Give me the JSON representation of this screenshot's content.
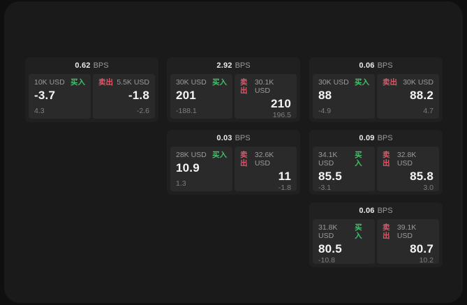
{
  "labels": {
    "bps": "BPS",
    "buy": "买入",
    "sell": "卖出"
  },
  "colors": {
    "page_background": "#0f0f0f",
    "panel_background": "#1a1a1a",
    "card_background": "#202020",
    "subpanel_background": "#2a2a2a",
    "buy_green": "#43c06a",
    "sell_red": "#e15565"
  },
  "cards": [
    {
      "bps": "0.62",
      "buy": {
        "amount": "10K USD",
        "value": "-3.7",
        "delta": "4.3"
      },
      "sell": {
        "amount": "5.5K USD",
        "value": "-1.8",
        "delta": "-2.6"
      }
    },
    {
      "bps": "2.92",
      "buy": {
        "amount": "30K USD",
        "value": "201",
        "delta": "-188.1"
      },
      "sell": {
        "amount": "30.1K USD",
        "value": "210",
        "delta": "196.5"
      }
    },
    {
      "bps": "0.06",
      "buy": {
        "amount": "30K USD",
        "value": "88",
        "delta": "-4.9"
      },
      "sell": {
        "amount": "30K USD",
        "value": "88.2",
        "delta": "4.7"
      }
    },
    {
      "bps": "0.03",
      "buy": {
        "amount": "28K USD",
        "value": "10.9",
        "delta": "1.3"
      },
      "sell": {
        "amount": "32.6K USD",
        "value": "11",
        "delta": "-1.8"
      }
    },
    {
      "bps": "0.09",
      "buy": {
        "amount": "34.1K USD",
        "value": "85.5",
        "delta": "-3.1"
      },
      "sell": {
        "amount": "32.8K USD",
        "value": "85.8",
        "delta": "3.0"
      }
    },
    {
      "bps": "0.06",
      "buy": {
        "amount": "31.8K USD",
        "value": "80.5",
        "delta": "-10.8"
      },
      "sell": {
        "amount": "39.1K USD",
        "value": "80.7",
        "delta": "10.2"
      }
    }
  ]
}
